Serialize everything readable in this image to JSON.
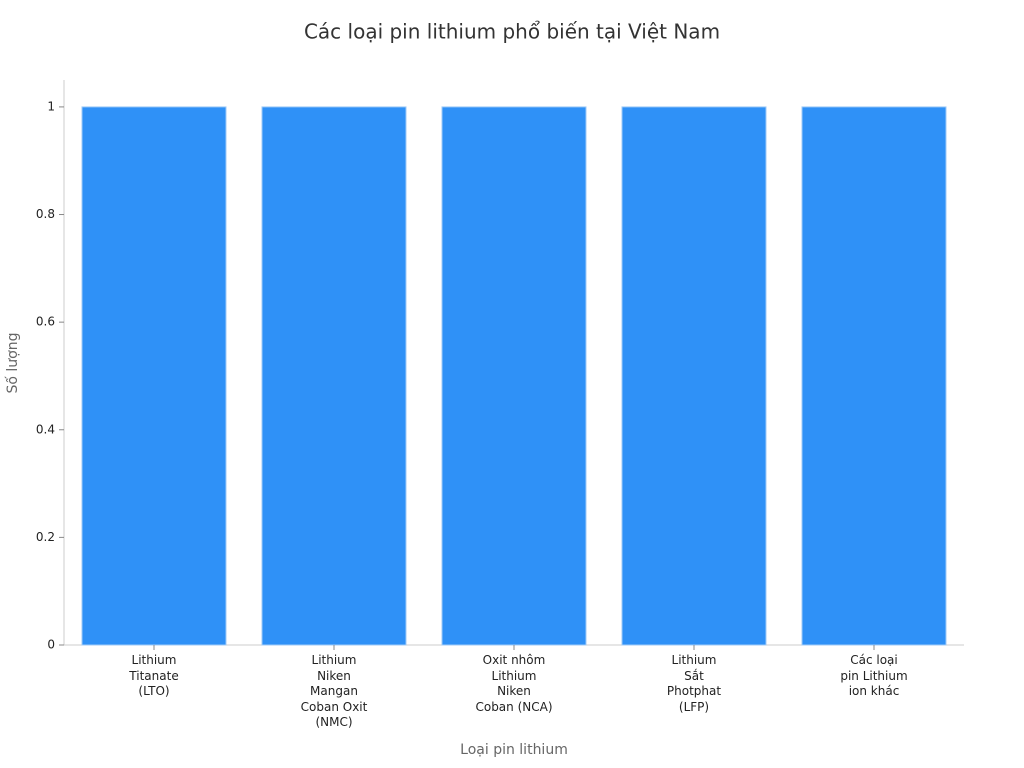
{
  "chart_data": {
    "type": "bar",
    "title": "Các loại pin lithium phổ biến tại Việt Nam",
    "x_label": "Loại pin lithium",
    "y_label": "Số lượng",
    "categories": [
      "Lithium\nTitanate\n(LTO)",
      "Lithium\nNiken\nMangan\nCoban Oxit\n(NMC)",
      "Oxit nhôm\nLithium\nNiken\nCoban (NCA)",
      "Lithium\nSắt\nPhotphat\n(LFP)",
      "Các loại\npin Lithium\nion khác"
    ],
    "values": [
      1,
      1,
      1,
      1,
      1
    ],
    "color": "#2f91f7",
    "ylim": [
      0,
      1.05
    ],
    "yticks": [
      0,
      0.2,
      0.4,
      0.6,
      0.8,
      1
    ],
    "grid": false
  }
}
